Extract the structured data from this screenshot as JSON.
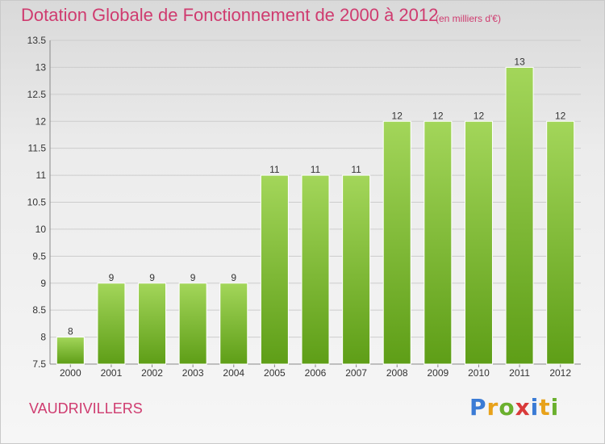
{
  "header": {
    "title": "Dotation Globale de Fonctionnement de 2000 à 2012",
    "subtitle": "(en milliers d'€)"
  },
  "footer": {
    "commune": "VAUDRIVILLERS",
    "logo_text": "Proxiti"
  },
  "chart_data": {
    "type": "bar",
    "title": "Dotation Globale de Fonctionnement de 2000 à 2012",
    "subtitle": "(en milliers d'€)",
    "xlabel": "",
    "ylabel": "",
    "categories": [
      "2000",
      "2001",
      "2002",
      "2003",
      "2004",
      "2005",
      "2006",
      "2007",
      "2008",
      "2009",
      "2010",
      "2011",
      "2012"
    ],
    "values": [
      8,
      9,
      9,
      9,
      9,
      11,
      11,
      11,
      12,
      12,
      12,
      13,
      12
    ],
    "data_labels": [
      "8",
      "9",
      "9",
      "9",
      "9",
      "11",
      "11",
      "11",
      "12",
      "12",
      "12",
      "13",
      "12"
    ],
    "ylim": [
      7.5,
      13.5
    ],
    "yticks": [
      "7.5",
      "8",
      "8.5",
      "9",
      "9.5",
      "10",
      "10.5",
      "11",
      "11.5",
      "12",
      "12.5",
      "13",
      "13.5"
    ],
    "grid": true,
    "colors": {
      "bar_light": "#9bd04a",
      "bar_dark": "#5e9e17",
      "title": "#cf3b6f",
      "grid": "#cccccc"
    }
  }
}
